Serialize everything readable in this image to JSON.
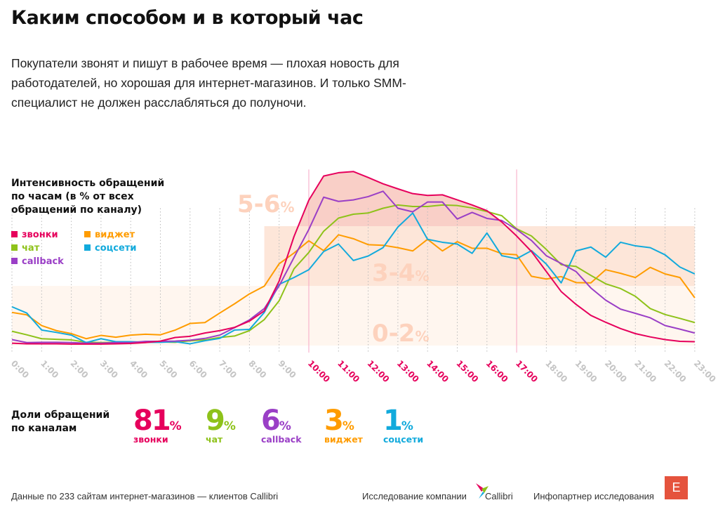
{
  "title": "Каким способом и в который час",
  "lead": "Покупатели звонят и пишут в рабочее время — плохая новость для работодателей, но хорошая для интернет-магазинов. И только SMM-специалист не должен расслабляться до полуночи.",
  "chart_data": {
    "type": "line",
    "title": "Интенсивность обращений по часам (в % от всех обращений по каналу)",
    "x_tick_labels": [
      "0:00",
      "1:00",
      "2:00",
      "3:00",
      "4:00",
      "5:00",
      "6:00",
      "7:00",
      "8:00",
      "9:00",
      "10:00",
      "11:00",
      "12:00",
      "13:00",
      "14:00",
      "15:00",
      "16:00",
      "17:00",
      "18:00",
      "19:00",
      "20:00",
      "21:00",
      "22:00",
      "23:00"
    ],
    "highlight_hours": [
      "10:00",
      "17:00"
    ],
    "x_step_hours": 0.5,
    "xlim": [
      0,
      23
    ],
    "ylim": [
      0,
      6
    ],
    "grid": "vertical dotted per hour",
    "bands": [
      {
        "label": "0-2",
        "unit": "%",
        "range": [
          0,
          2
        ]
      },
      {
        "label": "3-4",
        "unit": "%",
        "range": [
          2,
          4
        ]
      },
      {
        "label": "5-6",
        "unit": "%",
        "range": [
          4,
          6
        ]
      }
    ],
    "series": [
      {
        "name": "звонки",
        "color": "#e6005c",
        "values": [
          0.08,
          0.06,
          0.06,
          0.06,
          0.05,
          0.05,
          0.05,
          0.06,
          0.07,
          0.1,
          0.15,
          0.27,
          0.31,
          0.42,
          0.5,
          0.61,
          0.82,
          1.16,
          2.16,
          3.65,
          4.87,
          5.68,
          5.79,
          5.83,
          5.63,
          5.42,
          5.25,
          5.09,
          5.03,
          5.05,
          4.88,
          4.71,
          4.52,
          4.14,
          3.67,
          3.15,
          2.48,
          1.81,
          1.38,
          1.01,
          0.78,
          0.57,
          0.4,
          0.29,
          0.2,
          0.14,
          0.13
        ]
      },
      {
        "name": "виджет",
        "color": "#ff9c00",
        "values": [
          1.11,
          1.03,
          0.67,
          0.5,
          0.4,
          0.23,
          0.34,
          0.28,
          0.35,
          0.38,
          0.36,
          0.52,
          0.74,
          0.77,
          1.09,
          1.4,
          1.73,
          1.99,
          2.74,
          3.1,
          3.51,
          3.18,
          3.71,
          3.58,
          3.38,
          3.36,
          3.28,
          3.17,
          3.56,
          3.17,
          3.48,
          3.26,
          3.26,
          3.08,
          3.04,
          2.32,
          2.23,
          2.31,
          2.11,
          2.1,
          2.54,
          2.42,
          2.28,
          2.62,
          2.4,
          2.28,
          1.6
        ]
      },
      {
        "name": "чат",
        "color": "#8ec21a",
        "values": [
          0.48,
          0.36,
          0.23,
          0.21,
          0.19,
          0.11,
          0.1,
          0.11,
          0.12,
          0.12,
          0.12,
          0.11,
          0.16,
          0.19,
          0.27,
          0.32,
          0.5,
          0.87,
          1.5,
          2.57,
          3.12,
          3.83,
          4.27,
          4.4,
          4.44,
          4.6,
          4.71,
          4.66,
          4.66,
          4.71,
          4.69,
          4.61,
          4.49,
          4.35,
          3.91,
          3.67,
          3.22,
          2.71,
          2.65,
          2.35,
          2.07,
          1.91,
          1.65,
          1.24,
          1.04,
          0.91,
          0.77
        ]
      },
      {
        "name": "соцсети",
        "color": "#12aadc",
        "values": [
          1.3,
          1.09,
          0.52,
          0.44,
          0.35,
          0.1,
          0.23,
          0.13,
          0.13,
          0.11,
          0.11,
          0.13,
          0.06,
          0.16,
          0.24,
          0.52,
          0.54,
          1.11,
          2.05,
          2.28,
          2.54,
          3.15,
          3.4,
          2.85,
          3.0,
          3.28,
          3.97,
          4.44,
          3.56,
          3.46,
          3.4,
          3.09,
          3.77,
          3.01,
          2.91,
          3.18,
          2.73,
          2.1,
          3.17,
          3.3,
          2.96,
          3.46,
          3.34,
          3.28,
          3.04,
          2.63,
          2.4
        ]
      },
      {
        "name": "callback",
        "color": "#9a3fc6",
        "values": [
          0.2,
          0.1,
          0.11,
          0.11,
          0.1,
          0.08,
          0.08,
          0.1,
          0.1,
          0.14,
          0.14,
          0.15,
          0.18,
          0.24,
          0.35,
          0.6,
          0.86,
          1.24,
          2.0,
          2.95,
          3.89,
          4.97,
          4.83,
          4.88,
          4.99,
          5.17,
          4.6,
          4.48,
          4.81,
          4.81,
          4.24,
          4.46,
          4.26,
          4.19,
          3.89,
          3.52,
          3.01,
          2.75,
          2.48,
          1.93,
          1.52,
          1.22,
          1.08,
          0.93,
          0.67,
          0.55,
          0.42
        ]
      }
    ]
  },
  "legend": [
    {
      "label": "звонки",
      "color": "#e6005c"
    },
    {
      "label": "виджет",
      "color": "#ff9c00"
    },
    {
      "label": "чат",
      "color": "#8ec21a"
    },
    {
      "label": "соцсети",
      "color": "#12aadc"
    },
    {
      "label": "callback",
      "color": "#9a3fc6"
    }
  ],
  "shares": {
    "title": "Доли обращений по каналам",
    "items": [
      {
        "value": "81",
        "unit": "%",
        "label": "звонки",
        "color": "#e6005c"
      },
      {
        "value": "9",
        "unit": "%",
        "label": "чат",
        "color": "#8ec21a"
      },
      {
        "value": "6",
        "unit": "%",
        "label": "callback",
        "color": "#9a3fc6"
      },
      {
        "value": "3",
        "unit": "%",
        "label": "виджет",
        "color": "#ff9c00"
      },
      {
        "value": "1",
        "unit": "%",
        "label": "соцсети",
        "color": "#12aadc"
      }
    ]
  },
  "footer": {
    "source": "Данные по 233 сайтам интернет-магазинов — клиентов Callibri",
    "research_by": "Исследование компании",
    "company_logo": "Callibri",
    "partner_label": "Инфопартнер исследования",
    "partner_logo": "E"
  }
}
